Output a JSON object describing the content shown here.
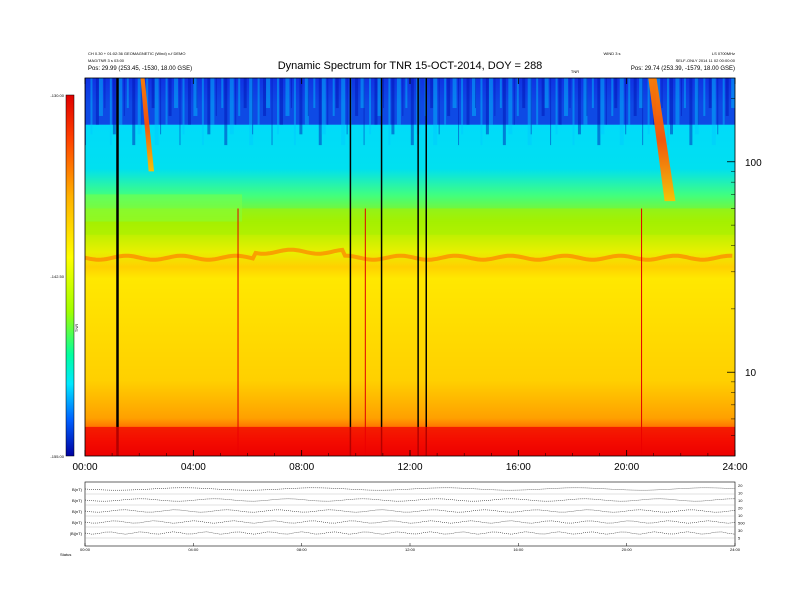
{
  "header": {
    "title": "Dynamic Spectrum for TNR 15-OCT-2014, DOY = 288",
    "left_line1": "CH 0.30 + 01:02:36 GEOMAGNETIC (Wind) x-f DEMO",
    "left_line2": "MAG/TNR 3 s 03:00",
    "left_line3": "Pos: 29.99 (253.45, -1530, 18.00 GSE)",
    "right_line1": "LS 0700MHz",
    "right_line2": "SELF-ONLY 2014 11 02 00:00:00",
    "right_line3": "Pos: 29.74 (253.39, -1579, 18.00 GSE)",
    "center_small1": "WIND 3 s",
    "center_small2": "TNR"
  },
  "chart_data": {
    "type": "heatmap",
    "title": "Dynamic Spectrum for TNR 15-OCT-2014, DOY = 288",
    "x": {
      "label": "",
      "ticks": [
        "00:00",
        "04:00",
        "08:00",
        "12:00",
        "16:00",
        "20:00",
        "24:00"
      ],
      "range_hours": [
        0,
        24
      ]
    },
    "y": {
      "label": "",
      "scale": "log",
      "ticks": [
        "10",
        "100"
      ],
      "range_khz": [
        4,
        250
      ]
    },
    "colorbar": {
      "label": "TNR",
      "ticks": [
        "-130.00",
        "-142.50",
        "-155.00"
      ],
      "range_db": [
        -155,
        -130
      ],
      "colors": [
        "#0000a0",
        "#0030ff",
        "#00e0ff",
        "#00ff90",
        "#80ff00",
        "#ffff00",
        "#ffa000",
        "#ff2000",
        "#e00000"
      ]
    },
    "bands": [
      {
        "from_khz": 4,
        "to_khz": 5.5,
        "level": "red"
      },
      {
        "from_khz": 5.5,
        "to_khz": 9,
        "level": "orange"
      },
      {
        "from_khz": 9,
        "to_khz": 30,
        "level": "yellow"
      },
      {
        "from_khz": 30,
        "to_khz": 60,
        "level": "yellow-green"
      },
      {
        "from_khz": 60,
        "to_khz": 150,
        "level": "cyan"
      },
      {
        "from_khz": 150,
        "to_khz": 250,
        "level": "blue"
      }
    ],
    "enhanced_band_khz": 35,
    "bursts": [
      {
        "start_h": 2.05,
        "end_h": 2.55,
        "top_khz": 250,
        "bottom_khz": 90
      },
      {
        "start_h": 20.8,
        "end_h": 21.8,
        "top_khz": 250,
        "bottom_khz": 65
      }
    ],
    "data_gaps_h": [
      1.2,
      9.8,
      10.95,
      12.3,
      12.6
    ],
    "spikes_h": [
      5.65,
      20.55,
      10.35
    ]
  },
  "lower_panels": {
    "labels": [
      "B(nT)",
      "B(nT)",
      "B(nT)",
      "B(nT)",
      "|B|(nT)",
      "Status"
    ],
    "right_values": [
      "20",
      "10",
      "10",
      "20",
      "10",
      "500",
      "30",
      "5"
    ],
    "status_label": "Status"
  }
}
